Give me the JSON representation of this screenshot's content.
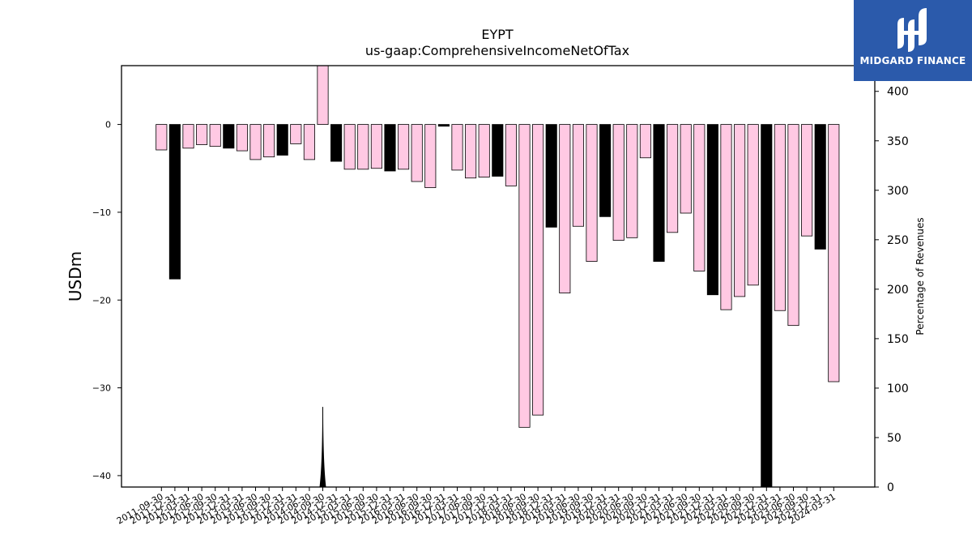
{
  "brand": {
    "name": "MIDGARD FINANCE"
  },
  "colors": {
    "bar_default": "#ffc9e3",
    "bar_highlight": "#000000",
    "logo_bg": "#2b5aab"
  },
  "chart_data": {
    "type": "bar",
    "title": "EYPT",
    "subtitle": "us-gaap:ComprehensiveIncomeNetOfTax",
    "ylabel": "USDm",
    "ylabel_right": "Percentage of Revenues",
    "ylim": [
      -41.3,
      6.7
    ],
    "ylim_right": [
      0,
      426
    ],
    "yticks": [
      0,
      -10,
      -20,
      -30,
      -40
    ],
    "yticks_right": [
      0,
      50,
      100,
      150,
      200,
      250,
      300,
      350,
      400
    ],
    "categories": [
      "2011-09-30",
      "2011-12-31",
      "2012-03-31",
      "2012-06-30",
      "2012-09-30",
      "2012-12-31",
      "2013-03-31",
      "2013-06-30",
      "2013-09-30",
      "2013-12-31",
      "2014-03-31",
      "2014-06-30",
      "2014-09-30",
      "2014-12-31",
      "2015-03-31",
      "2015-06-30",
      "2015-09-30",
      "2015-12-31",
      "2016-03-31",
      "2016-06-30",
      "2016-09-30",
      "2016-12-31",
      "2017-03-31",
      "2017-06-30",
      "2017-09-30",
      "2017-12-31",
      "2018-03-31",
      "2018-06-30",
      "2018-09-30",
      "2018-12-31",
      "2019-03-31",
      "2019-06-30",
      "2019-09-30",
      "2019-12-31",
      "2020-03-31",
      "2020-06-30",
      "2020-09-30",
      "2020-12-31",
      "2021-03-31",
      "2021-06-30",
      "2021-09-30",
      "2021-12-31",
      "2022-03-31",
      "2022-06-30",
      "2022-09-30",
      "2022-12-31",
      "2023-03-31",
      "2023-06-30",
      "2023-09-30",
      "2023-12-31",
      "2024-03-31"
    ],
    "values": [
      -2.9,
      -17.6,
      -2.7,
      -2.3,
      -2.5,
      -2.7,
      -3.0,
      -4.0,
      -3.7,
      -3.5,
      -2.2,
      -4.0,
      6.7,
      -4.2,
      -5.1,
      -5.1,
      -5.0,
      -5.3,
      -5.1,
      -6.5,
      -7.2,
      -0.2,
      -5.2,
      -6.1,
      -6.0,
      -5.9,
      -7.0,
      -34.5,
      -33.1,
      -11.7,
      -19.2,
      -11.6,
      -15.6,
      -10.5,
      -13.2,
      -12.9,
      -3.8,
      -15.6,
      -12.3,
      -10.1,
      -16.7,
      -19.4,
      -21.1,
      -19.6,
      -18.3,
      -41.3,
      -21.2,
      -22.9,
      -12.7,
      -14.2,
      -29.3
    ],
    "highlight": [
      false,
      true,
      false,
      false,
      false,
      true,
      false,
      false,
      false,
      true,
      false,
      false,
      false,
      true,
      false,
      false,
      false,
      true,
      false,
      false,
      false,
      true,
      false,
      false,
      false,
      true,
      false,
      false,
      false,
      true,
      false,
      false,
      false,
      true,
      false,
      false,
      false,
      true,
      false,
      false,
      false,
      true,
      false,
      false,
      false,
      true,
      false,
      false,
      false,
      true,
      false
    ],
    "percentage_of_revenues": [
      {
        "x": "2014-09-30",
        "y": 81
      }
    ]
  }
}
